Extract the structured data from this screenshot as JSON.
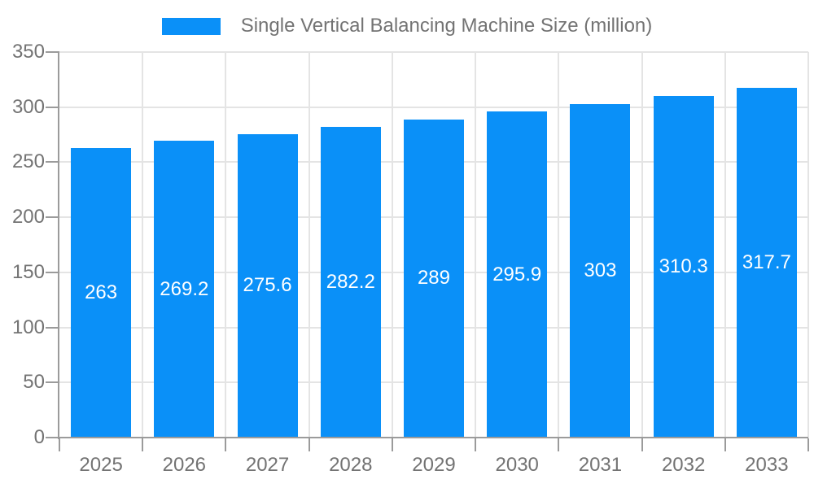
{
  "chart_data": {
    "type": "bar",
    "title": "Single Vertical Balancing Machine Size (million)",
    "categories": [
      "2025",
      "2026",
      "2027",
      "2028",
      "2029",
      "2030",
      "2031",
      "2032",
      "2033"
    ],
    "values": [
      263,
      269.2,
      275.6,
      282.2,
      289,
      295.9,
      303,
      310.3,
      317.7
    ],
    "series": [
      {
        "name": "Single Vertical Balancing Machine Size (million)",
        "values": [
          263,
          269.2,
          275.6,
          282.2,
          289,
          295.9,
          303,
          310.3,
          317.7
        ]
      }
    ],
    "xlabel": "",
    "ylabel": "",
    "ylim": [
      0,
      350
    ],
    "yticks": [
      0,
      50,
      100,
      150,
      200,
      250,
      300,
      350
    ],
    "grid": true,
    "legend_position": "top",
    "value_labels_position": "inside-center",
    "colors": {
      "bar": "#0A90F8",
      "bar_label_text": "#FFFFFF",
      "grid_line": "#E4E4E4",
      "axis_line": "#9B9B9B",
      "tick_text": "#737373",
      "legend_text": "#737373",
      "background": "#FFFFFF"
    }
  }
}
